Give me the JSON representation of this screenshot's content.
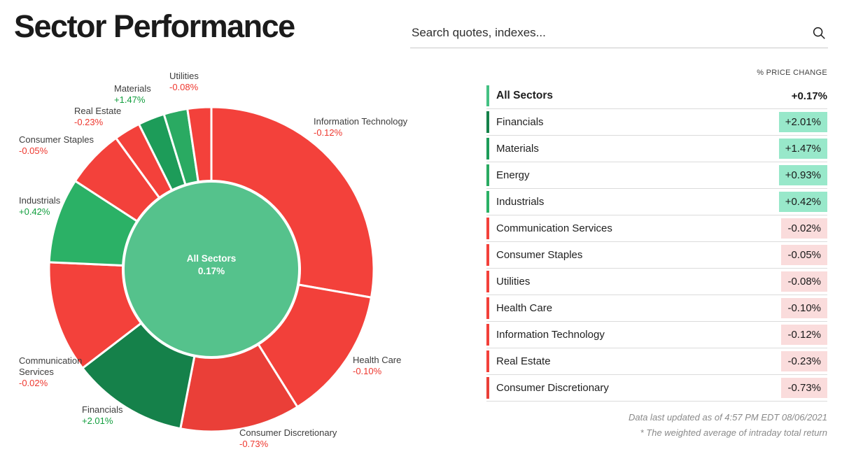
{
  "header": {
    "title": "Sector Performance",
    "search": {
      "placeholder": "Search quotes, indexes...",
      "icon": "search-icon"
    }
  },
  "table": {
    "header": "% PRICE CHANGE",
    "rows": [
      {
        "name": "All Sectors",
        "value": "+0.17%",
        "color": "#44c183",
        "total": true
      },
      {
        "name": "Financials",
        "value": "+2.01%",
        "color": "#15814a"
      },
      {
        "name": "Materials",
        "value": "+1.47%",
        "color": "#1d9c59"
      },
      {
        "name": "Energy",
        "value": "+0.93%",
        "color": "#2aaa62"
      },
      {
        "name": "Industrials",
        "value": "+0.42%",
        "color": "#2bb166"
      },
      {
        "name": "Communication Services",
        "value": "-0.02%",
        "color": "#f3413b"
      },
      {
        "name": "Consumer Staples",
        "value": "-0.05%",
        "color": "#f3413b"
      },
      {
        "name": "Utilities",
        "value": "-0.08%",
        "color": "#f3413b"
      },
      {
        "name": "Health Care",
        "value": "-0.10%",
        "color": "#f2403a"
      },
      {
        "name": "Information Technology",
        "value": "-0.12%",
        "color": "#f2403a"
      },
      {
        "name": "Real Estate",
        "value": "-0.23%",
        "color": "#f3413b"
      },
      {
        "name": "Consumer Discretionary",
        "value": "-0.73%",
        "color": "#ea3f38"
      }
    ],
    "footnotes": [
      "Data last updated as of 4:57 PM EDT 08/06/2021",
      "* The weighted average of intraday total return"
    ]
  },
  "chart_data": {
    "type": "donut",
    "title": "Sector Performance",
    "center": {
      "label": "All Sectors",
      "value": "0.17%",
      "color": "#55c28c"
    },
    "note": "slice arc span (degrees, clockwise from 12 o'clock) reflects sector market-cap weight; green = positive % change, red = negative",
    "slices": [
      {
        "id": "information-technology",
        "name": "Information Technology",
        "value": "-0.12%",
        "arc_deg": 100.0,
        "color": "#f3413b",
        "labeled": true
      },
      {
        "id": "health-care",
        "name": "Health Care",
        "value": "-0.10%",
        "arc_deg": 48.0,
        "color": "#f2403a",
        "labeled": true
      },
      {
        "id": "consumer-discretionary",
        "name": "Consumer Discretionary",
        "value": "-0.73%",
        "arc_deg": 43.0,
        "color": "#ea3f38",
        "labeled": true
      },
      {
        "id": "financials",
        "name": "Financials",
        "value": "+2.01%",
        "arc_deg": 41.5,
        "color": "#15814a",
        "labeled": true
      },
      {
        "id": "communication-services",
        "name": "Communication Services",
        "value": "-0.02%",
        "arc_deg": 40.0,
        "color": "#f3413b",
        "labeled": true
      },
      {
        "id": "industrials",
        "name": "Industrials",
        "value": "+0.42%",
        "arc_deg": 30.5,
        "color": "#2bb166",
        "labeled": true
      },
      {
        "id": "consumer-staples",
        "name": "Consumer Staples",
        "value": "-0.05%",
        "arc_deg": 21.0,
        "color": "#f3413b",
        "labeled": true
      },
      {
        "id": "real-estate",
        "name": "Real Estate",
        "value": "-0.23%",
        "arc_deg": 9.5,
        "color": "#f3413b",
        "labeled": true
      },
      {
        "id": "materials",
        "name": "Materials",
        "value": "+1.47%",
        "arc_deg": 9.5,
        "color": "#1d9c59",
        "labeled": true
      },
      {
        "id": "energy",
        "name": "Energy",
        "value": "+0.93%",
        "arc_deg": 8.5,
        "color": "#2aaa62",
        "labeled": false
      },
      {
        "id": "utilities",
        "name": "Utilities",
        "value": "-0.08%",
        "arc_deg": 8.5,
        "color": "#f3413b",
        "labeled": true
      }
    ]
  }
}
